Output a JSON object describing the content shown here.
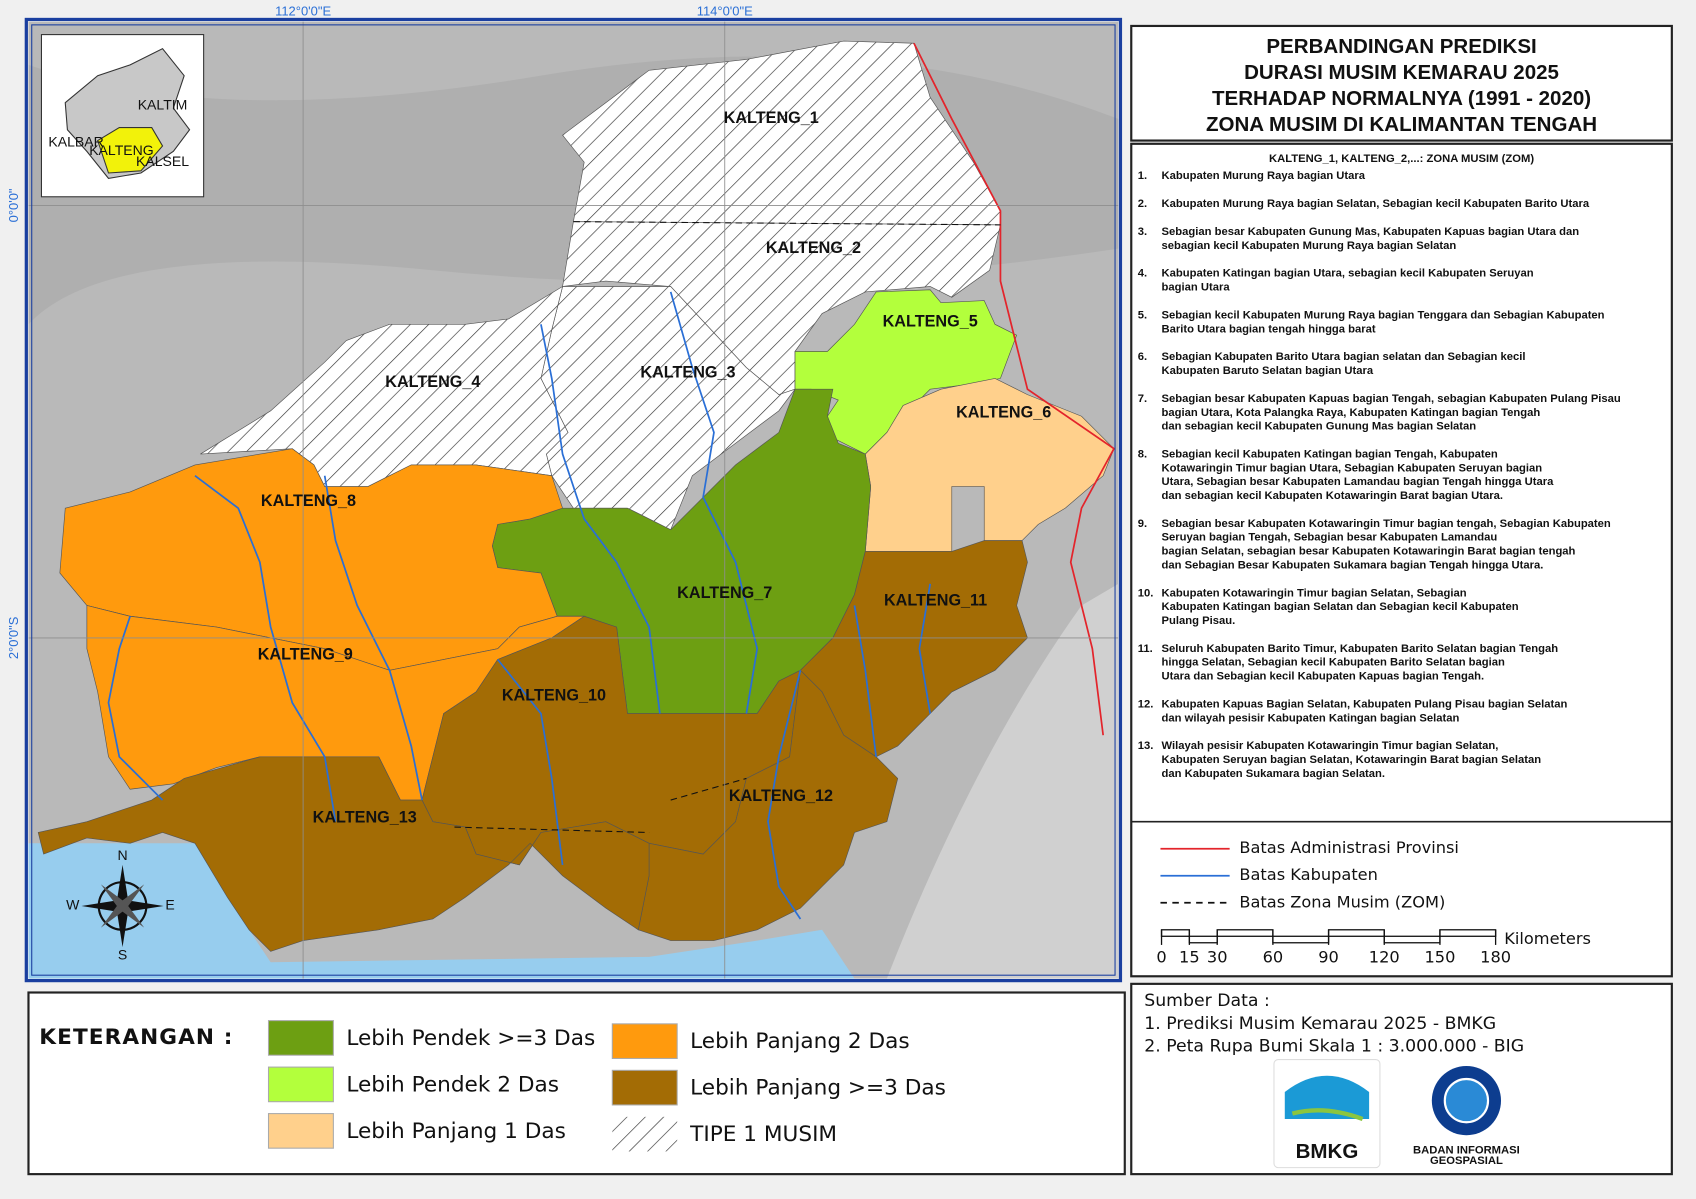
{
  "map": {
    "coordinates": {
      "top": [
        "112°0'0\"E",
        "114°0'0\"E"
      ],
      "left": [
        "0°0'0\"",
        "2°0'0\"S"
      ]
    },
    "zones": [
      "KALTENG_1",
      "KALTENG_2",
      "KALTENG_3",
      "KALTENG_4",
      "KALTENG_5",
      "KALTENG_6",
      "KALTENG_7",
      "KALTENG_8",
      "KALTENG_9",
      "KALTENG_10",
      "KALTENG_11",
      "KALTENG_12",
      "KALTENG_13"
    ],
    "compass": {
      "n": "N",
      "s": "S",
      "e": "E",
      "w": "W"
    },
    "inset": [
      "KALBAR",
      "KALTIM",
      "KALSEL",
      "KALTENG"
    ]
  },
  "title": [
    "PERBANDINGAN PREDIKSI",
    "DURASI MUSIM KEMARAU 2025",
    "TERHADAP NORMALNYA (1991 - 2020)",
    "ZONA MUSIM DI KALIMANTAN TENGAH"
  ],
  "zone_list": {
    "heading": "KALTENG_1, KALTENG_2,...: ZONA MUSIM (ZOM)",
    "items": [
      {
        "number": "1.",
        "lines": [
          "Kabupaten Murung Raya bagian Utara"
        ]
      },
      {
        "number": "2.",
        "lines": [
          "Kabupaten Murung Raya bagian Selatan, Sebagian kecil Kabupaten Barito Utara"
        ]
      },
      {
        "number": "3.",
        "lines": [
          "Sebagian besar Kabupaten Gunung Mas, Kabupaten Kapuas bagian Utara dan",
          "sebagian kecil Kabupaten Murung Raya bagian Selatan"
        ]
      },
      {
        "number": "4.",
        "lines": [
          "Kabupaten Katingan bagian Utara, sebagian kecil Kabupaten Seruyan",
          "bagian Utara"
        ]
      },
      {
        "number": "5.",
        "lines": [
          "Sebagian kecil Kabupaten Murung Raya bagian Tenggara dan Sebagian Kabupaten",
          "Barito Utara bagian tengah hingga barat"
        ]
      },
      {
        "number": "6.",
        "lines": [
          "Sebagian Kabupaten Barito Utara bagian selatan dan Sebagian kecil",
          "Kabupaten Baruto Selatan bagian Utara"
        ]
      },
      {
        "number": "7.",
        "lines": [
          "Sebagian besar Kabupaten Kapuas bagian Tengah, sebagian Kabupaten Pulang Pisau",
          "bagian Utara, Kota Palangka Raya, Kabupaten Katingan bagian Tengah",
          "dan sebagian kecil Kabupaten Gunung Mas bagian Selatan"
        ]
      },
      {
        "number": "8.",
        "lines": [
          "Sebagian kecil Kabupaten Katingan bagian Tengah, Kabupaten",
          "Kotawaringin Timur bagian Utara, Sebagian Kabupaten Seruyan bagian",
          "Utara, Sebagian besar Kabupaten Lamandau bagian Tengah hingga Utara",
          "dan sebagian kecil Kabupaten Kotawaringin Barat bagian Utara."
        ]
      },
      {
        "number": "9.",
        "lines": [
          "Sebagian besar Kabupaten Kotawaringin Timur bagian tengah, Sebagian Kabupaten",
          "Seruyan bagian Tengah, Sebagian besar Kabupaten Lamandau",
          "bagian Selatan, sebagian besar Kabupaten Kotawaringin Barat bagian tengah",
          "dan Sebagian Besar Kabupaten Sukamara bagian Tengah hingga Utara."
        ]
      },
      {
        "number": "10.",
        "lines": [
          "Kabupaten Kotawaringin Timur bagian Selatan, Sebagian",
          "Kabupaten Katingan bagian Selatan dan Sebagian kecil Kabupaten",
          "Pulang Pisau."
        ]
      },
      {
        "number": "11.",
        "lines": [
          "Seluruh Kabupaten Barito Timur, Kabupaten Barito Selatan bagian Tengah",
          "hingga Selatan, Sebagian kecil Kabupaten Barito Selatan bagian",
          "Utara dan Sebagian kecil Kabupaten Kapuas bagian Tengah."
        ]
      },
      {
        "number": "12.",
        "lines": [
          "Kabupaten Kapuas Bagian Selatan, Kabupaten Pulang Pisau bagian Selatan",
          "dan wilayah pesisir Kabupaten Katingan bagian Selatan"
        ]
      },
      {
        "number": "13.",
        "lines": [
          "Wilayah pesisir Kabupaten Kotawaringin Timur bagian Selatan,",
          "Kabupaten Seruyan bagian Selatan, Kotawaringin Barat bagian Selatan",
          "dan Kabupaten Sukamara bagian Selatan."
        ]
      }
    ]
  },
  "boundaries": [
    {
      "label": "Batas Administrasi Provinsi",
      "color": "#e3242b",
      "style": "solid"
    },
    {
      "label": "Batas Kabupaten",
      "color": "#2a6fd6",
      "style": "solid"
    },
    {
      "label": "Batas Zona Musim (ZOM)",
      "color": "#111111",
      "style": "dashed"
    }
  ],
  "scale_bar": {
    "ticks": [
      0,
      15,
      30,
      60,
      90,
      120,
      150,
      180
    ],
    "unit": "Kilometers"
  },
  "legend": {
    "title": "KETERANGAN :",
    "items": [
      {
        "label": "Lebih Pendek >=3 Das",
        "color": "#6d9f12"
      },
      {
        "label": "Lebih Pendek 2 Das",
        "color": "#b3ff3c"
      },
      {
        "label": "Lebih Panjang 1 Das",
        "color": "#ffd08c"
      },
      {
        "label": "Lebih Panjang 2 Das",
        "color": "#ff9a0d"
      },
      {
        "label": "Lebih Panjang >=3 Das",
        "color": "#a36c05"
      },
      {
        "label": "TIPE 1 MUSIM",
        "pattern": "hatch"
      }
    ]
  },
  "sources": {
    "title": "Sumber Data :",
    "items": [
      "1. Prediksi Musim Kemarau 2025 - BMKG",
      "2. Peta Rupa Bumi Skala 1 : 3.000.000 - BIG"
    ]
  },
  "logos": {
    "bmkg": "BMKG",
    "big": [
      "BADAN INFORMASI",
      "GEOSPASIAL"
    ]
  }
}
